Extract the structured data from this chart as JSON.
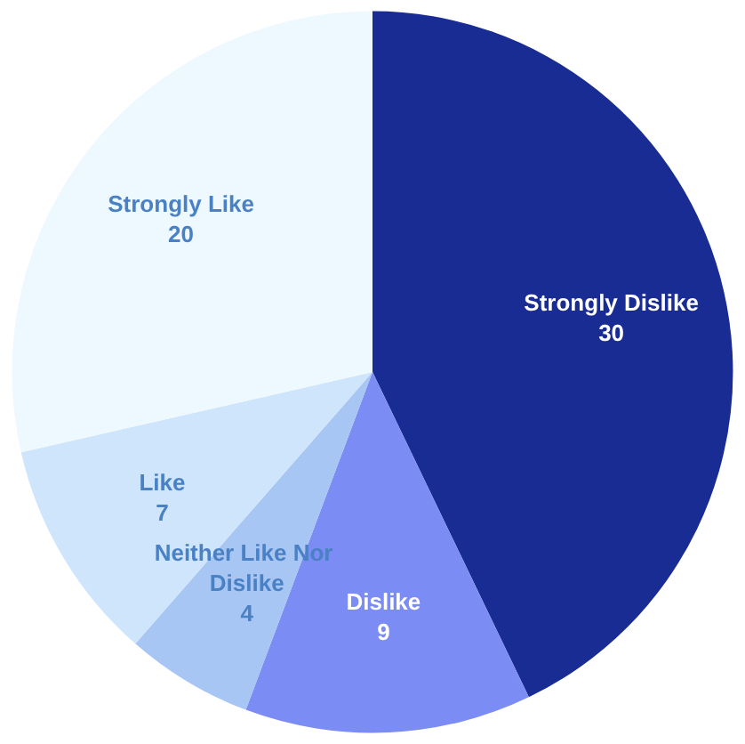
{
  "chart_data": {
    "type": "pie",
    "categories": [
      "Strongly Dislike",
      "Dislike",
      "Neither Like Nor Dislike",
      "Like",
      "Strongly Like"
    ],
    "values": [
      30,
      9,
      4,
      7,
      20
    ],
    "colors": [
      "#182c94",
      "#7b8cf4",
      "#a7c6f4",
      "#cfe5fb",
      "#eef8ff"
    ],
    "data_labels": true,
    "legend": false
  }
}
